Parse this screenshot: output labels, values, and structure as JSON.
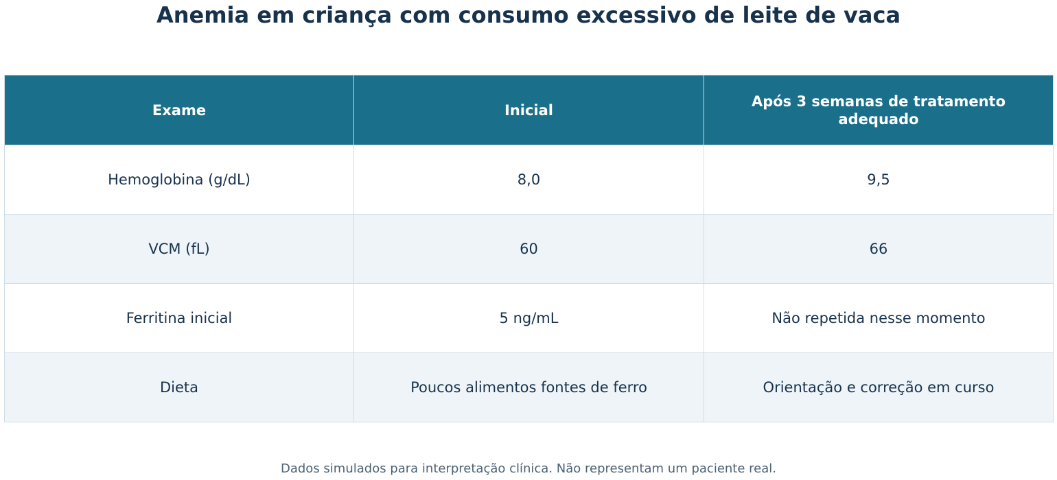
{
  "title": "Anemia em criança com consumo excessivo de leite de vaca",
  "footnote": "Dados simulados para interpretação clínica. Não representam um paciente real.",
  "colors": {
    "header_bg": "#1a6f8a",
    "header_text": "#ffffff",
    "text": "#17324d",
    "row_alt_bg": "#eef4f8",
    "border": "#cfdce6"
  },
  "chart_data": {
    "type": "table",
    "title": "Anemia em criança com consumo excessivo de leite de vaca",
    "columns": [
      "Exame",
      "Inicial",
      "Após 3 semanas de tratamento adequado"
    ],
    "rows": [
      [
        "Hemoglobina (g/dL)",
        "8,0",
        "9,5"
      ],
      [
        "VCM (fL)",
        "60",
        "66"
      ],
      [
        "Ferritina inicial",
        "5 ng/mL",
        "Não repetida nesse momento"
      ],
      [
        "Dieta",
        "Poucos alimentos fontes de ferro",
        "Orientação e correção em curso"
      ]
    ]
  }
}
